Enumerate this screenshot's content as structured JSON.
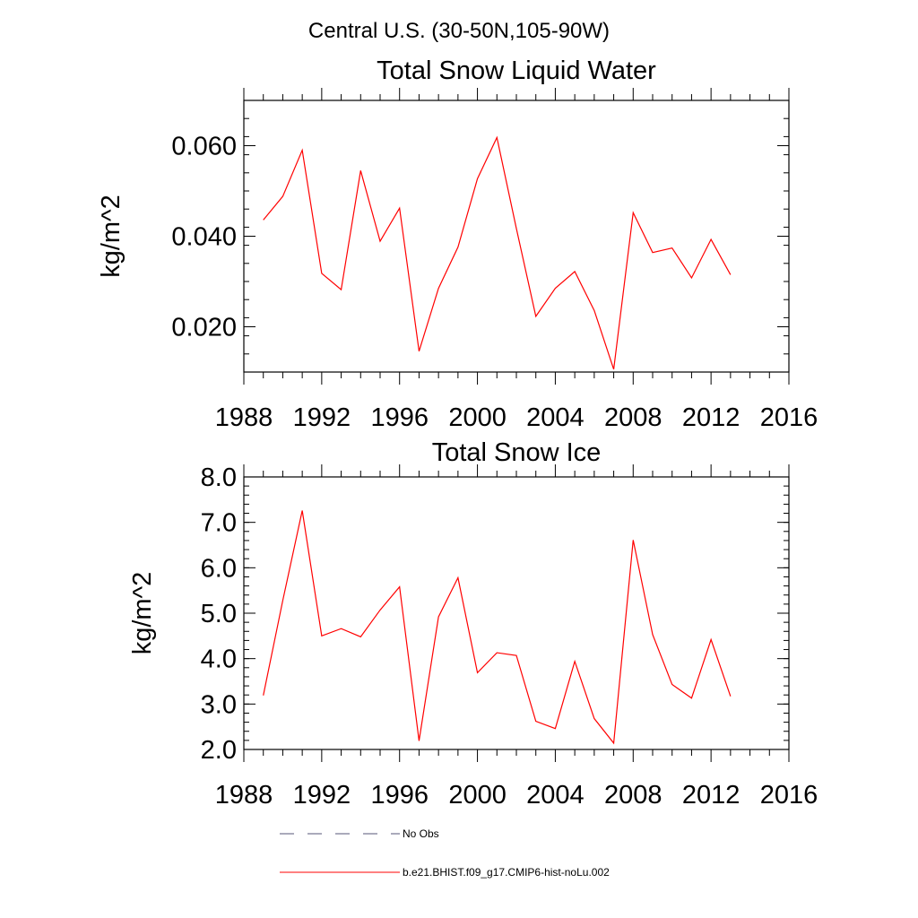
{
  "figure": {
    "main_title": "Central U.S. (30-50N,105-90W)"
  },
  "colors": {
    "series": "#ff0000",
    "axes": "#000000",
    "no_obs": "#555577"
  },
  "chart_data": [
    {
      "type": "line",
      "title": "Total Snow Liquid Water",
      "xlabel": "",
      "ylabel": "kg/m^2",
      "xlim": [
        1988,
        2016
      ],
      "ylim": [
        0.01,
        0.07
      ],
      "xticks": [
        1988,
        1992,
        1996,
        2000,
        2004,
        2008,
        2012,
        2016
      ],
      "xtick_labels": [
        "1988",
        "1992",
        "1996",
        "2000",
        "2004",
        "2008",
        "2012",
        "2016"
      ],
      "yticks": [
        0.02,
        0.04,
        0.06
      ],
      "ytick_labels": [
        "0.020",
        "0.040",
        "0.060"
      ],
      "grid": false,
      "x": [
        1989,
        1990,
        1991,
        1992,
        1993,
        1994,
        1995,
        1996,
        1997,
        1998,
        1999,
        2000,
        2001,
        2002,
        2003,
        2004,
        2005,
        2006,
        2007,
        2008,
        2009,
        2010,
        2011,
        2012,
        2013
      ],
      "series": [
        {
          "name": "b.e21.BHIST.f09_g17.CMIP6-hist-noLu.002",
          "values": [
            0.0436,
            0.0488,
            0.059,
            0.0318,
            0.0282,
            0.0545,
            0.0389,
            0.0462,
            0.0146,
            0.0285,
            0.0376,
            0.0527,
            0.0618,
            0.0417,
            0.0223,
            0.0285,
            0.0322,
            0.0236,
            0.0106,
            0.0452,
            0.0364,
            0.0374,
            0.0308,
            0.0393,
            0.0315
          ]
        }
      ]
    },
    {
      "type": "line",
      "title": "Total Snow Ice",
      "xlabel": "",
      "ylabel": "kg/m^2",
      "xlim": [
        1988,
        2016
      ],
      "ylim": [
        2.0,
        8.0
      ],
      "xticks": [
        1988,
        1992,
        1996,
        2000,
        2004,
        2008,
        2012,
        2016
      ],
      "xtick_labels": [
        "1988",
        "1992",
        "1996",
        "2000",
        "2004",
        "2008",
        "2012",
        "2016"
      ],
      "yticks": [
        2.0,
        3.0,
        4.0,
        5.0,
        6.0,
        7.0,
        8.0
      ],
      "ytick_labels": [
        "2.0",
        "3.0",
        "4.0",
        "5.0",
        "6.0",
        "7.0",
        "8.0"
      ],
      "grid": false,
      "x": [
        1989,
        1990,
        1991,
        1992,
        1993,
        1994,
        1995,
        1996,
        1997,
        1998,
        1999,
        2000,
        2001,
        2002,
        2003,
        2004,
        2005,
        2006,
        2007,
        2008,
        2009,
        2010,
        2011,
        2012,
        2013
      ],
      "series": [
        {
          "name": "b.e21.BHIST.f09_g17.CMIP6-hist-noLu.002",
          "values": [
            3.19,
            5.28,
            7.26,
            4.5,
            4.66,
            4.48,
            5.07,
            5.58,
            2.19,
            4.92,
            5.78,
            3.69,
            4.13,
            4.07,
            2.62,
            2.46,
            3.94,
            2.68,
            2.14,
            6.61,
            4.53,
            3.43,
            3.13,
            4.42,
            3.17
          ]
        }
      ]
    }
  ],
  "legend": {
    "placement": "bottom",
    "items": [
      {
        "label": "No Obs",
        "style": "dashed"
      },
      {
        "label": "b.e21.BHIST.f09_g17.CMIP6-hist-noLu.002",
        "style": "solid"
      }
    ]
  }
}
